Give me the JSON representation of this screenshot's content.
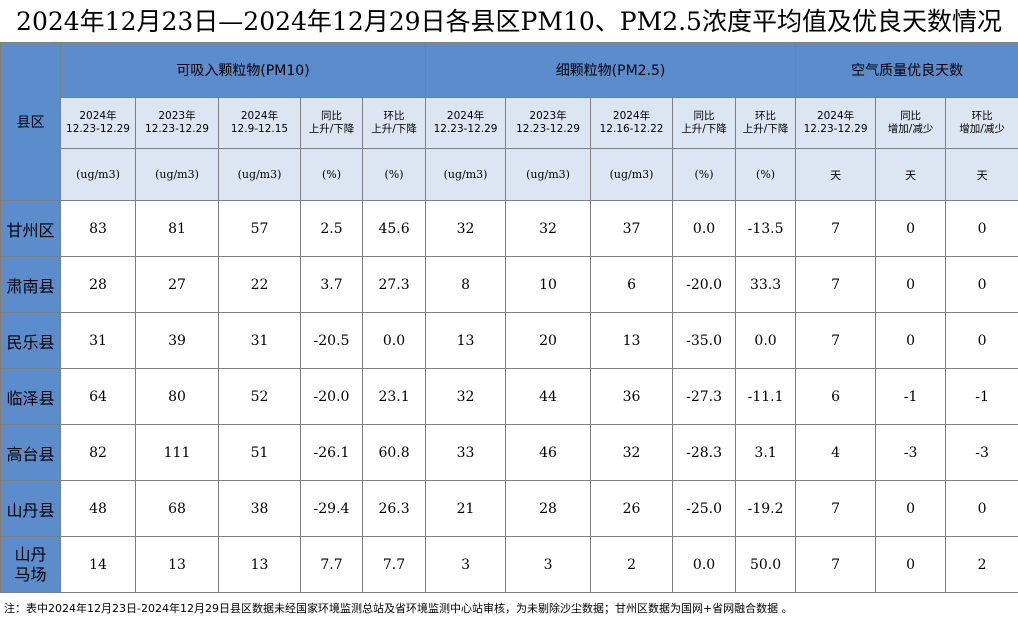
{
  "header": {
    "title": "2024年12月23日—2024年12月29日各县区PM10、PM2.5浓度平均值及优良天数情况"
  },
  "table": {
    "corner": "县区",
    "groups": [
      {
        "label": "可吸入颗粒物(PM10)",
        "span": 5
      },
      {
        "label": "细颗粒物(PM2.5)",
        "span": 5
      },
      {
        "label": "空气质量优良天数",
        "span": 3
      }
    ],
    "subheaders": [
      [
        "2024年",
        "12.23-12.29"
      ],
      [
        "2023年",
        "12.23-12.29"
      ],
      [
        "2024年",
        "12.9-12.15"
      ],
      [
        "同比",
        "上升/下降"
      ],
      [
        "环比",
        "上升/下降"
      ],
      [
        "2024年",
        "12.23-12.29"
      ],
      [
        "2023年",
        "12.23-12.29"
      ],
      [
        "2024年",
        "12.16-12.22"
      ],
      [
        "同比",
        "上升/下降"
      ],
      [
        "环比",
        "上升/下降"
      ],
      [
        "2024年",
        "12.23-12.29"
      ],
      [
        "同比",
        "增加/减少"
      ],
      [
        "环比",
        "增加/减少"
      ]
    ],
    "units": [
      "(ug/m3)",
      "(ug/m3)",
      "(ug/m3)",
      "(%)",
      "(%)",
      "(ug/m3)",
      "(ug/m3)",
      "(ug/m3)",
      "(%)",
      "(%)",
      "天",
      "天",
      "天"
    ],
    "rows": [
      [
        "甘州区",
        "83",
        "81",
        "57",
        "2.5",
        "45.6",
        "32",
        "32",
        "37",
        "0.0",
        "-13.5",
        "7",
        "0",
        "0"
      ],
      [
        "肃南县",
        "28",
        "27",
        "22",
        "3.7",
        "27.3",
        "8",
        "10",
        "6",
        "-20.0",
        "33.3",
        "7",
        "0",
        "0"
      ],
      [
        "民乐县",
        "31",
        "39",
        "31",
        "-20.5",
        "0.0",
        "13",
        "20",
        "13",
        "-35.0",
        "0.0",
        "7",
        "0",
        "0"
      ],
      [
        "临泽县",
        "64",
        "80",
        "52",
        "-20.0",
        "23.1",
        "32",
        "44",
        "36",
        "-27.3",
        "-11.1",
        "6",
        "-1",
        "-1"
      ],
      [
        "高台县",
        "82",
        "111",
        "51",
        "-26.1",
        "60.8",
        "33",
        "46",
        "32",
        "-28.3",
        "3.1",
        "4",
        "-3",
        "-3"
      ],
      [
        "山丹县",
        "48",
        "68",
        "38",
        "-29.4",
        "26.3",
        "21",
        "28",
        "26",
        "-25.0",
        "-19.2",
        "7",
        "0",
        "0"
      ],
      [
        "山丹马场",
        "14",
        "13",
        "13",
        "7.7",
        "7.7",
        "3",
        "3",
        "2",
        "0.0",
        "50.0",
        "7",
        "0",
        "2"
      ]
    ]
  },
  "note": "注：表中2024年12月23日-2024年12月29日县区数据未经国家环境监测总站及省环境监测中心站审核，为未剔除沙尘数据；甘州区数据为国网+省网融合数据 。"
}
